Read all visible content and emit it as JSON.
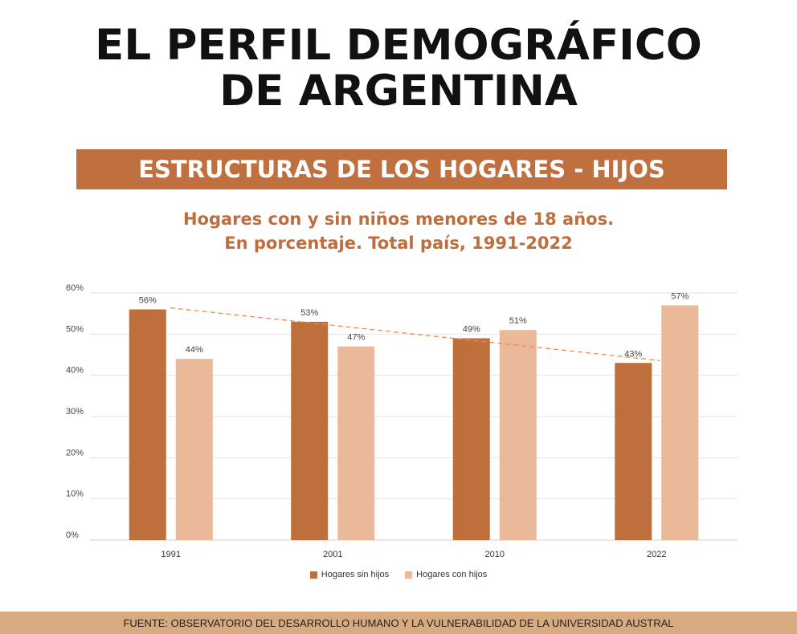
{
  "header": {
    "title_line1": "EL PERFIL DEMOGRÁFICO",
    "title_line2": "DE ARGENTINA",
    "banner": "ESTRUCTURAS DE LOS HOGARES - HIJOS",
    "subtitle_line1": "Hogares con y sin niños menores de 18 años.",
    "subtitle_line2": "En porcentaje. Total país, 1991-2022"
  },
  "colors": {
    "sin_hijos": "#bf6f3b",
    "con_hijos": "#e9b99a",
    "trend": "#f08a50",
    "banner": "#c0703f",
    "footer": "#d8aa80"
  },
  "chart_data": {
    "type": "bar",
    "categories": [
      "1991",
      "2001",
      "2010",
      "2022"
    ],
    "series": [
      {
        "name": "Hogares sin hijos",
        "values": [
          56,
          53,
          49,
          43
        ],
        "labels": [
          "56%",
          "53%",
          "49%",
          "43%"
        ]
      },
      {
        "name": "Hogares con hijos",
        "values": [
          44,
          47,
          51,
          57
        ],
        "labels": [
          "44%",
          "47%",
          "51%",
          "57%"
        ]
      }
    ],
    "trend_line": {
      "series": "Hogares sin hijos",
      "style": "dashed"
    },
    "yticks": [
      "0%",
      "10%",
      "20%",
      "30%",
      "40%",
      "50%",
      "60%"
    ],
    "ylim": [
      0,
      60
    ],
    "grid": true,
    "legend_position": "bottom"
  },
  "footer": {
    "source": "FUENTE: OBSERVATORIO DEL DESARROLLO HUMANO Y LA VULNERABILIDAD DE LA UNIVERSIDAD AUSTRAL"
  }
}
